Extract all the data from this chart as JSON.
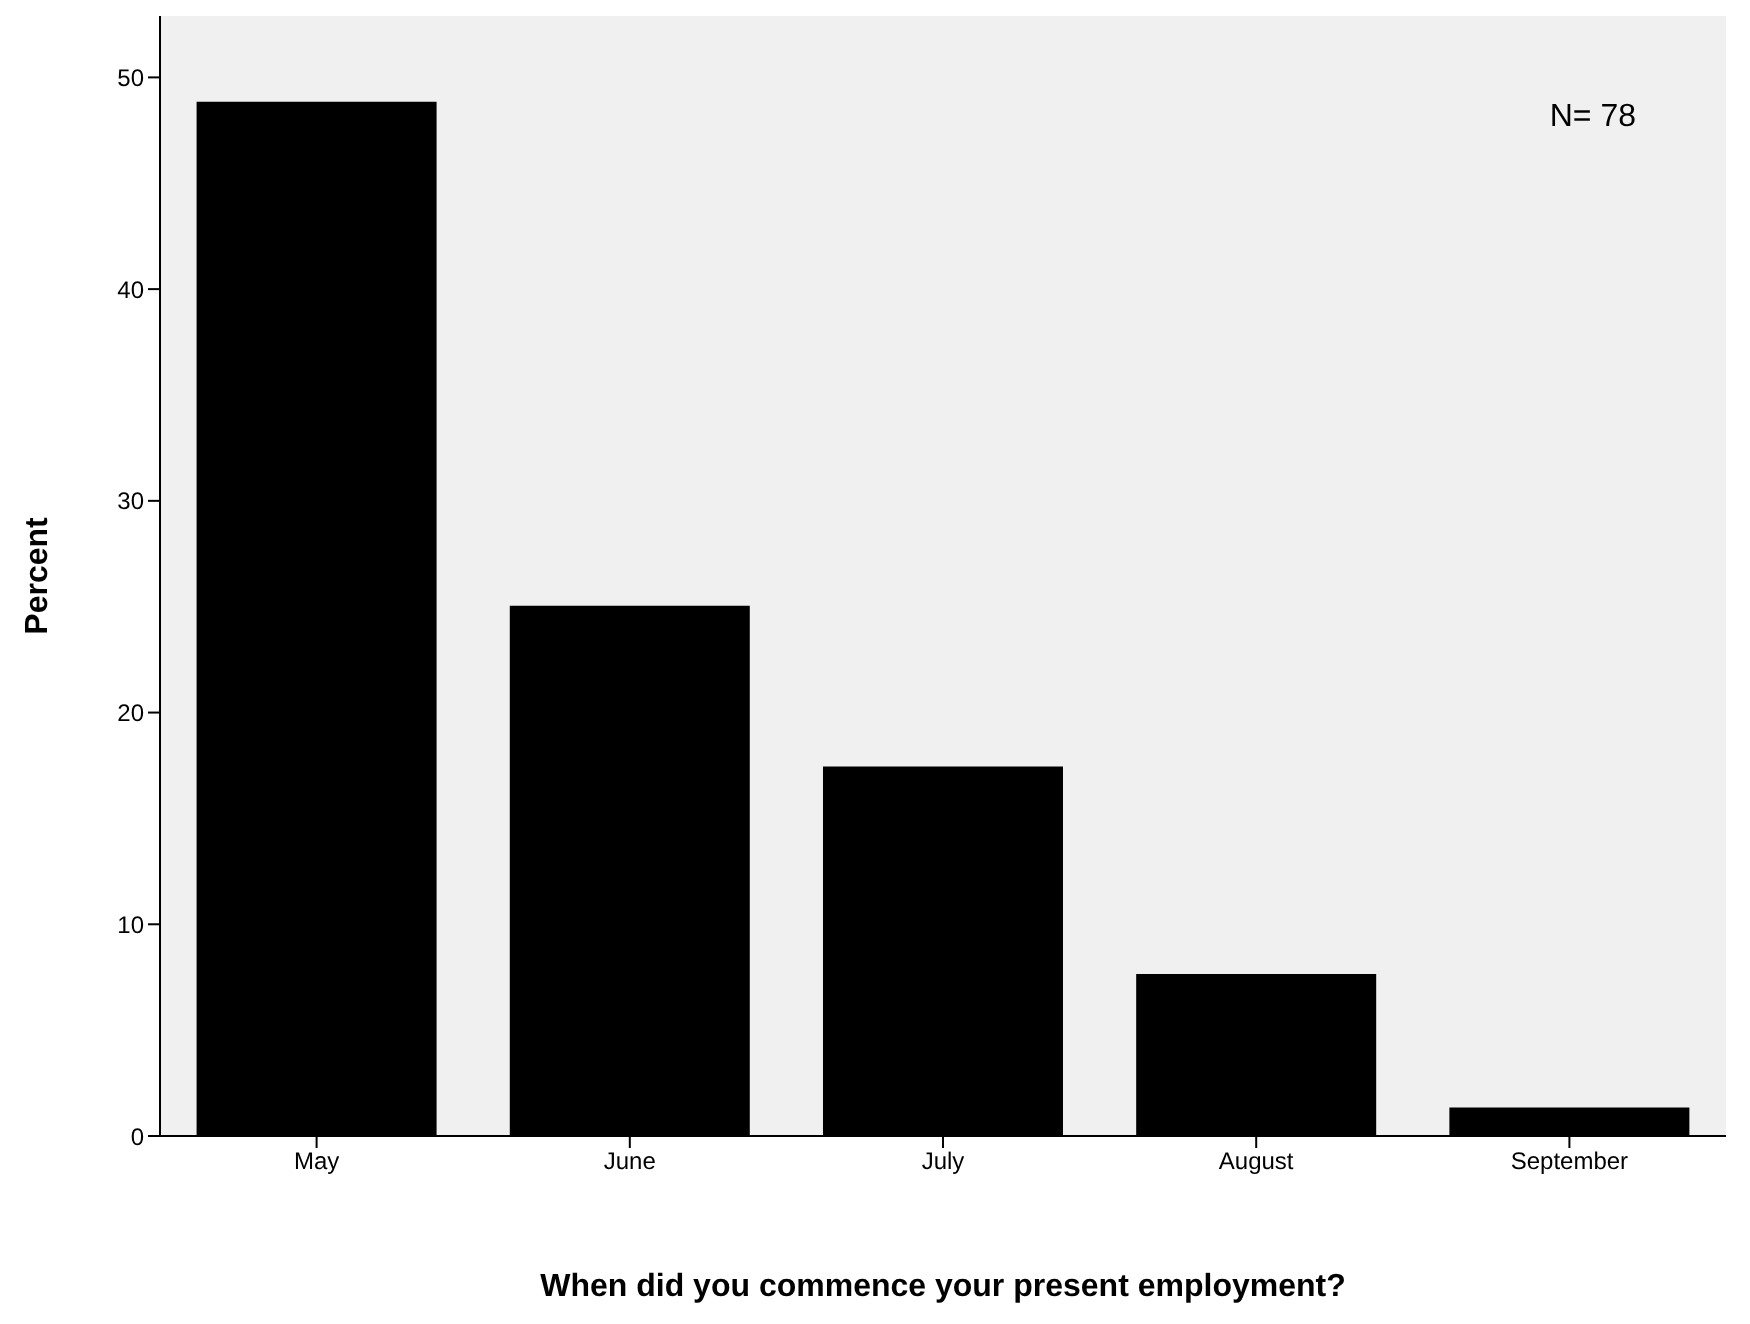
{
  "chart_data": {
    "type": "bar",
    "xlabel": "When did you commence your present employment?",
    "ylabel": "Percent",
    "categories": [
      "May",
      "June",
      "July",
      "August",
      "September"
    ],
    "values": [
      48.8,
      25.0,
      17.4,
      7.6,
      1.3
    ],
    "color": "#000000",
    "ylim": [
      0,
      52.9
    ],
    "yticks": [
      0,
      10,
      20,
      30,
      40,
      50
    ],
    "grid": false,
    "annotations": [
      "N= 78"
    ]
  }
}
